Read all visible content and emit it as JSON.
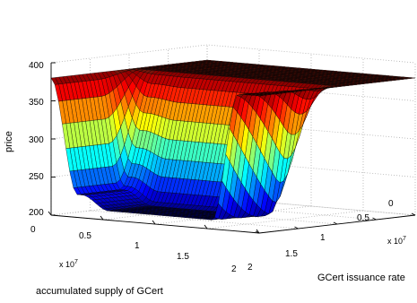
{
  "chart_data": {
    "type": "surface",
    "title": "",
    "zlabel": "price",
    "xlabel": "accumulated supply of GCert",
    "ylabel": "GCert issuance rate",
    "x_multiplier": "x 10",
    "x_multiplier_exp": "7",
    "y_multiplier": "x 10",
    "y_multiplier_exp": "7",
    "x_ticks": [
      "0",
      "0.5",
      "1",
      "1.5",
      "2"
    ],
    "y_ticks": [
      "0",
      "0.5",
      "1",
      "1.5",
      "2"
    ],
    "z_ticks": [
      "200",
      "250",
      "300",
      "350",
      "400"
    ],
    "xlim": [
      0,
      20000000
    ],
    "ylim": [
      0,
      20000000
    ],
    "zlim": [
      200,
      400
    ],
    "grid": true,
    "colormap": "jet",
    "surface_values": {
      "price_max": 380,
      "price_min": 210,
      "x_at_grid": [
        0,
        0.1,
        0.2,
        0.3,
        0.4,
        0.5,
        0.6,
        0.7,
        0.8,
        0.9,
        1.0,
        1.1,
        1.2,
        1.3,
        1.4,
        1.5,
        1.6,
        1.7,
        1.8,
        1.9,
        2.0
      ],
      "note_edge": "",
      "profile_x_1e7": [
        0,
        0.15,
        0.3,
        0.5,
        0.8,
        1.2,
        1.6,
        1.8,
        2.0
      ],
      "profile_price_low_rate": [
        380,
        260,
        235,
        215,
        212,
        212,
        212,
        380,
        380
      ],
      "profile_price_high_rate": [
        380,
        380,
        380,
        380,
        380,
        380,
        380,
        380,
        380
      ]
    }
  }
}
